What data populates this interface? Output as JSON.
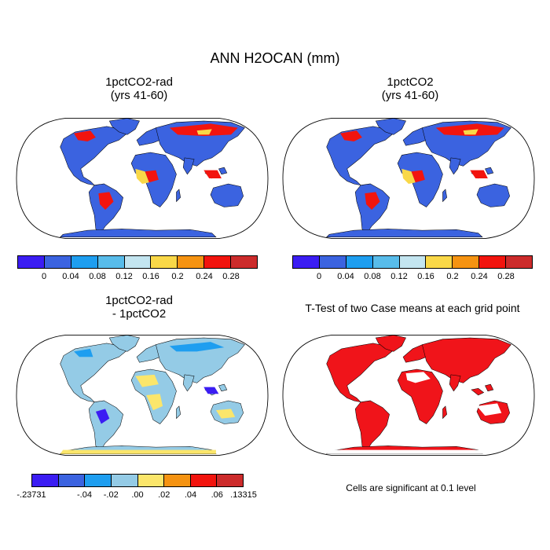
{
  "title": "ANN H2OCAN (mm)",
  "panels": [
    {
      "title_line1": "1pctCO2-rad",
      "title_line2": "(yrs 41-60)"
    },
    {
      "title_line1": "1pctCO2",
      "title_line2": "(yrs 41-60)"
    },
    {
      "title_line1": "1pctCO2-rad",
      "title_line2": "- 1pctCO2"
    },
    {
      "title_line1": "T-Test of two Case means at each grid point",
      "title_line2": ""
    }
  ],
  "colorbar_top": {
    "colors": [
      "#3b1df3",
      "#3b63e0",
      "#1e9ef0",
      "#58bcea",
      "#c3e5f0",
      "#f9d848",
      "#f59312",
      "#f2140e",
      "#cc2b2b"
    ],
    "labels": [
      "0",
      "0.04",
      "0.08",
      "0.12",
      "0.16",
      "0.2",
      "0.24",
      "0.28"
    ]
  },
  "colorbar_diff": {
    "colors": [
      "#3b1df3",
      "#3b63e0",
      "#1e9ef0",
      "#94cbe6",
      "#fbe66b",
      "#f59312",
      "#f2140e",
      "#cc2b2b"
    ],
    "labels": [
      "-.23731",
      "-.04",
      "-.02",
      ".00",
      ".02",
      ".04",
      ".06",
      ".13315"
    ]
  },
  "ttest_color": "#f0141a",
  "significance_note": "Cells are significant at 0.1 level"
}
